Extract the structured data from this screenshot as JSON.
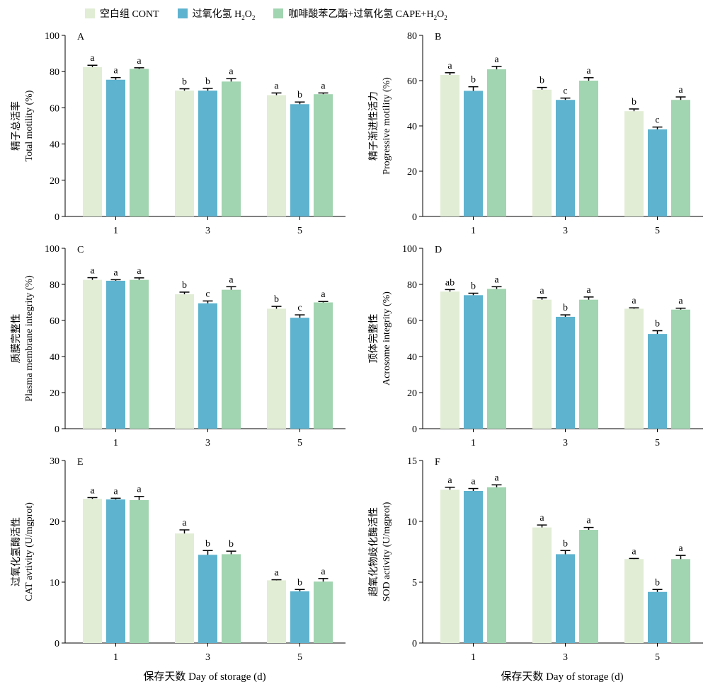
{
  "legend": [
    {
      "name": "空白组 CONT",
      "label_html": "空白组 CONT",
      "color": "#e1edd4"
    },
    {
      "name": "过氧化氢 H2O2",
      "label_html": "过氧化氢 H<sub>2</sub>O<sub>2</sub>",
      "color": "#5eb3cf"
    },
    {
      "name": "咖啡酸苯乙酯+过氧化氢 CAPE+H2O2",
      "label_html": "咖啡酸苯乙酯+过氧化氢 CAPE+H<sub>2</sub>O<sub>2</sub>",
      "color": "#a1d4b0"
    }
  ],
  "chart_data": [
    {
      "type": "bar",
      "panel": "A",
      "ylabel_cn": "精子总活率",
      "ylabel_en": "Total motility (%)",
      "xlabel": "",
      "categories": [
        "1",
        "3",
        "5"
      ],
      "ylim": [
        0,
        100
      ],
      "yticks": [
        0,
        20,
        40,
        60,
        80,
        100
      ],
      "series": [
        {
          "name": "空白组 CONT",
          "values": [
            82.5,
            69.5,
            67
          ],
          "errors": [
            1,
            1,
            1.2
          ],
          "letters": [
            "a",
            "b",
            "a"
          ]
        },
        {
          "name": "过氧化氢 H2O2",
          "values": [
            75.5,
            69.5,
            62
          ],
          "errors": [
            1.2,
            1.2,
            1.2
          ],
          "letters": [
            "a",
            "b",
            "b"
          ]
        },
        {
          "name": "咖啡酸苯乙酯+过氧化氢 CAPE+H2O2",
          "values": [
            81.5,
            74.5,
            67.5
          ],
          "errors": [
            0.6,
            1.6,
            0.7
          ],
          "letters": [
            "a",
            "a",
            "a"
          ]
        }
      ]
    },
    {
      "type": "bar",
      "panel": "B",
      "ylabel_cn": "精子渐进性活力",
      "ylabel_en": "Progressive motility (%)",
      "xlabel": "",
      "categories": [
        "1",
        "3",
        "5"
      ],
      "ylim": [
        0,
        80
      ],
      "yticks": [
        0,
        20,
        40,
        60,
        80
      ],
      "series": [
        {
          "name": "空白组 CONT",
          "values": [
            62.5,
            56,
            46.5
          ],
          "errors": [
            1,
            1,
            1
          ],
          "letters": [
            "a",
            "b",
            "b"
          ]
        },
        {
          "name": "过氧化氢 H2O2",
          "values": [
            55.5,
            51.5,
            38.5
          ],
          "errors": [
            1.8,
            0.8,
            1
          ],
          "letters": [
            "b",
            "c",
            "c"
          ]
        },
        {
          "name": "咖啡酸苯乙酯+过氧化氢 CAPE+H2O2",
          "values": [
            65,
            60,
            51.5
          ],
          "errors": [
            1.3,
            1.3,
            1.3
          ],
          "letters": [
            "a",
            "a",
            "a"
          ]
        }
      ]
    },
    {
      "type": "bar",
      "panel": "C",
      "ylabel_cn": "质膜完整性",
      "ylabel_en": "Plasma membrane integrity (%)",
      "xlabel": "",
      "categories": [
        "1",
        "3",
        "5"
      ],
      "ylim": [
        0,
        100
      ],
      "yticks": [
        0,
        20,
        40,
        60,
        80,
        100
      ],
      "series": [
        {
          "name": "空白组 CONT",
          "values": [
            82.5,
            74.5,
            66.5
          ],
          "errors": [
            1.2,
            1.2,
            1.3
          ],
          "letters": [
            "a",
            "b",
            "b"
          ]
        },
        {
          "name": "过氧化氢 H2O2",
          "values": [
            82,
            69.5,
            61.5
          ],
          "errors": [
            0.6,
            1.3,
            1.6
          ],
          "letters": [
            "a",
            "c",
            "c"
          ]
        },
        {
          "name": "咖啡酸苯乙酯+过氧化氢 CAPE+H2O2",
          "values": [
            82.5,
            77,
            70
          ],
          "errors": [
            1.1,
            1.7,
            0.5
          ],
          "letters": [
            "a",
            "a",
            "a"
          ]
        }
      ]
    },
    {
      "type": "bar",
      "panel": "D",
      "ylabel_cn": "顶体完整性",
      "ylabel_en": "Acrosome integrity (%)",
      "xlabel": "",
      "categories": [
        "1",
        "3",
        "5"
      ],
      "ylim": [
        0,
        100
      ],
      "yticks": [
        0,
        20,
        40,
        60,
        80,
        100
      ],
      "series": [
        {
          "name": "空白组 CONT",
          "values": [
            76,
            71.5,
            66.5
          ],
          "errors": [
            1.1,
            1.1,
            0.5
          ],
          "letters": [
            "ab",
            "a",
            "a"
          ]
        },
        {
          "name": "过氧化氢 H2O2",
          "values": [
            74,
            62,
            52.5
          ],
          "errors": [
            1.1,
            1.1,
            1.8
          ],
          "letters": [
            "b",
            "b",
            "b"
          ]
        },
        {
          "name": "咖啡酸苯乙酯+过氧化氢 CAPE+H2O2",
          "values": [
            77.5,
            71.5,
            66
          ],
          "errors": [
            1.2,
            1.5,
            0.8
          ],
          "letters": [
            "a",
            "a",
            "a"
          ]
        }
      ]
    },
    {
      "type": "bar",
      "panel": "E",
      "ylabel_cn": "过氧化氢酶活性",
      "ylabel_en": "CAT avtivity (U/mgprot)",
      "xlabel": "保存天数 Day of storage (d)",
      "categories": [
        "1",
        "3",
        "5"
      ],
      "ylim": [
        0,
        30
      ],
      "yticks": [
        0,
        10,
        20,
        30
      ],
      "series": [
        {
          "name": "空白组 CONT",
          "values": [
            23.7,
            18,
            10.3
          ],
          "errors": [
            0.2,
            0.6,
            0.1
          ],
          "letters": [
            "a",
            "a",
            "a"
          ]
        },
        {
          "name": "过氧化氢 H2O2",
          "values": [
            23.6,
            14.5,
            8.5
          ],
          "errors": [
            0.2,
            0.7,
            0.3
          ],
          "letters": [
            "a",
            "b",
            "b"
          ]
        },
        {
          "name": "咖啡酸苯乙酯+过氧化氢 CAPE+H2O2",
          "values": [
            23.5,
            14.6,
            10.1
          ],
          "errors": [
            0.6,
            0.5,
            0.5
          ],
          "letters": [
            "a",
            "b",
            "a"
          ]
        }
      ]
    },
    {
      "type": "bar",
      "panel": "F",
      "ylabel_cn": "超氧化物歧化酶活性",
      "ylabel_en": "SOD activity (U/mgprot)",
      "xlabel": "保存天数 Day of storage (d)",
      "categories": [
        "1",
        "3",
        "5"
      ],
      "ylim": [
        0,
        15
      ],
      "yticks": [
        0,
        5,
        10,
        15
      ],
      "series": [
        {
          "name": "空白组 CONT",
          "values": [
            12.6,
            9.5,
            6.9
          ],
          "errors": [
            0.2,
            0.2,
            0.05
          ],
          "letters": [
            "a",
            "a",
            "a"
          ]
        },
        {
          "name": "过氧化氢 H2O2",
          "values": [
            12.5,
            7.3,
            4.2
          ],
          "errors": [
            0.2,
            0.3,
            0.2
          ],
          "letters": [
            "a",
            "b",
            "b"
          ]
        },
        {
          "name": "咖啡酸苯乙酯+过氧化氢 CAPE+H2O2",
          "values": [
            12.8,
            9.3,
            6.9
          ],
          "errors": [
            0.2,
            0.2,
            0.3
          ],
          "letters": [
            "a",
            "a",
            "a"
          ]
        }
      ]
    }
  ]
}
